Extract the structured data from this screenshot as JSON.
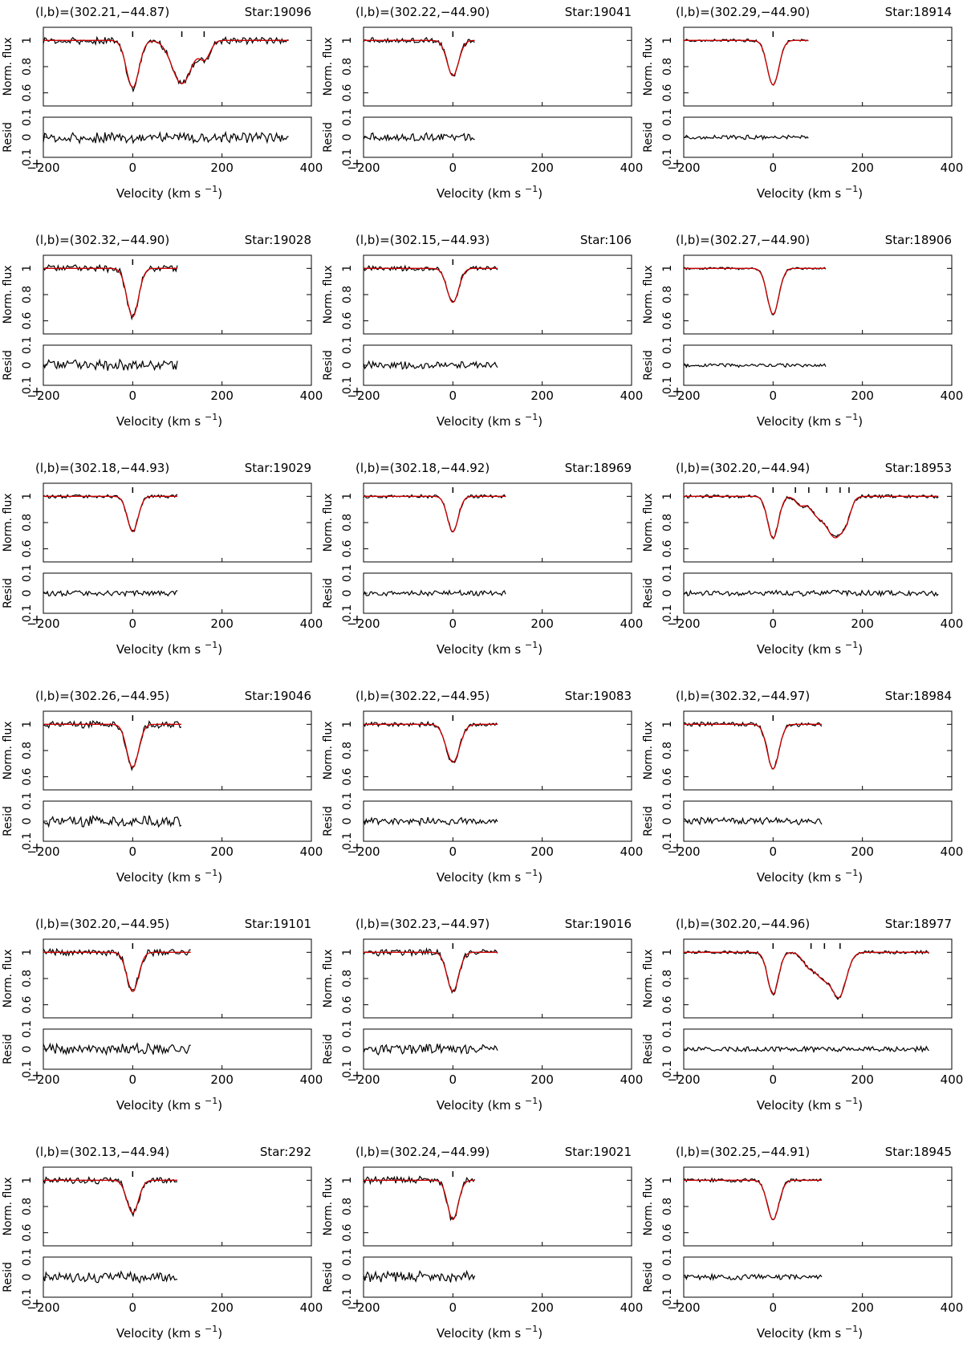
{
  "figure": {
    "colors": {
      "data": "#000000",
      "model": "#cc0000"
    },
    "panel_labels": {
      "coord_prefix": "(l,b)=",
      "star_prefix": "Star:",
      "y_main": "Norm. flux",
      "y_resid": "Resid",
      "x_label": "Velocity (km s",
      "x_label_exp": "−1",
      "x_label_close": ")"
    }
  },
  "chart_data": [
    {
      "type": "line",
      "coord": "(302.21,−44.87)",
      "star": "19096",
      "xlim": [
        -200,
        400
      ],
      "ylim_main": [
        0.5,
        1.1
      ],
      "yticks_main": [
        1,
        0.8,
        0.6
      ],
      "ylim_resid": [
        -0.1,
        0.1
      ],
      "yticks_resid": [
        "0.1",
        "0",
        "0.1"
      ],
      "xticks": [
        -200,
        0,
        200,
        400
      ],
      "xtick_labels": [
        "−200",
        "0",
        "200",
        "400"
      ],
      "vmax": 350,
      "markers": [
        0,
        110,
        160
      ],
      "components": [
        [
          0,
          0.36,
          14
        ],
        [
          110,
          0.33,
          22
        ],
        [
          162,
          0.13,
          12
        ]
      ],
      "resid_amp": 0.03
    },
    {
      "type": "line",
      "coord": "(302.22,−44.90)",
      "star": "19041",
      "xlim": [
        -200,
        400
      ],
      "ylim_main": [
        0.5,
        1.1
      ],
      "yticks_main": [
        1,
        0.8,
        0.6
      ],
      "ylim_resid": [
        -0.1,
        0.1
      ],
      "yticks_resid": [
        "0.1",
        "0",
        "0.1"
      ],
      "xticks": [
        -200,
        0,
        200,
        400
      ],
      "xtick_labels": [
        "−200",
        "0",
        "200",
        "400"
      ],
      "vmax": 50,
      "markers": [
        0
      ],
      "components": [
        [
          0,
          0.27,
          13
        ]
      ],
      "resid_amp": 0.022
    },
    {
      "type": "line",
      "coord": "(302.29,−44.90)",
      "star": "18914",
      "xlim": [
        -200,
        400
      ],
      "ylim_main": [
        0.5,
        1.1
      ],
      "yticks_main": [
        1,
        0.8,
        0.6
      ],
      "ylim_resid": [
        -0.1,
        0.1
      ],
      "yticks_resid": [
        "0.1",
        "0",
        "0.1"
      ],
      "xticks": [
        -200,
        0,
        200,
        400
      ],
      "xtick_labels": [
        "−200",
        "0",
        "200",
        "400"
      ],
      "vmax": 80,
      "markers": [
        0
      ],
      "components": [
        [
          0,
          0.34,
          13
        ]
      ],
      "resid_amp": 0.012
    },
    {
      "type": "line",
      "coord": "(302.32,−44.90)",
      "star": "19028",
      "xlim": [
        -200,
        400
      ],
      "ylim_main": [
        0.5,
        1.1
      ],
      "yticks_main": [
        1,
        0.8,
        0.6
      ],
      "ylim_resid": [
        -0.1,
        0.1
      ],
      "yticks_resid": [
        "0.1",
        "0",
        "0.1"
      ],
      "xticks": [
        -200,
        0,
        200,
        400
      ],
      "xtick_labels": [
        "−200",
        "0",
        "200",
        "400"
      ],
      "vmax": 100,
      "markers": [
        0
      ],
      "components": [
        [
          0,
          0.37,
          13
        ]
      ],
      "resid_amp": 0.03
    },
    {
      "type": "line",
      "coord": "(302.15,−44.93)",
      "star": "106",
      "xlim": [
        -200,
        400
      ],
      "ylim_main": [
        0.5,
        1.1
      ],
      "yticks_main": [
        1,
        0.8,
        0.6
      ],
      "ylim_resid": [
        -0.1,
        0.1
      ],
      "yticks_resid": [
        "0.1",
        "0",
        "0.1"
      ],
      "xticks": [
        -200,
        0,
        200,
        400
      ],
      "xtick_labels": [
        "−200",
        "0",
        "200",
        "400"
      ],
      "vmax": 100,
      "markers": [
        0
      ],
      "components": [
        [
          0,
          0.26,
          13
        ]
      ],
      "resid_amp": 0.02
    },
    {
      "type": "line",
      "coord": "(302.27,−44.90)",
      "star": "18906",
      "xlim": [
        -200,
        400
      ],
      "ylim_main": [
        0.5,
        1.1
      ],
      "yticks_main": [
        1,
        0.8,
        0.6
      ],
      "ylim_resid": [
        -0.1,
        0.1
      ],
      "yticks_resid": [
        "0.1",
        "0",
        "0.1"
      ],
      "xticks": [
        -200,
        0,
        200,
        400
      ],
      "xtick_labels": [
        "−200",
        "0",
        "200",
        "400"
      ],
      "vmax": 120,
      "markers": [],
      "components": [
        [
          0,
          0.35,
          13
        ]
      ],
      "resid_amp": 0.01
    },
    {
      "type": "line",
      "coord": "(302.18,−44.93)",
      "star": "19029",
      "xlim": [
        -200,
        400
      ],
      "ylim_main": [
        0.5,
        1.1
      ],
      "yticks_main": [
        1,
        0.8,
        0.6
      ],
      "ylim_resid": [
        -0.1,
        0.1
      ],
      "yticks_resid": [
        "0.1",
        "0",
        "0.1"
      ],
      "xticks": [
        -200,
        0,
        200,
        400
      ],
      "xtick_labels": [
        "−200",
        "0",
        "200",
        "400"
      ],
      "vmax": 100,
      "markers": [
        0
      ],
      "components": [
        [
          0,
          0.27,
          12
        ]
      ],
      "resid_amp": 0.015
    },
    {
      "type": "line",
      "coord": "(302.18,−44.92)",
      "star": "18969",
      "xlim": [
        -200,
        400
      ],
      "ylim_main": [
        0.5,
        1.1
      ],
      "yticks_main": [
        1,
        0.8,
        0.6
      ],
      "ylim_resid": [
        -0.1,
        0.1
      ],
      "yticks_resid": [
        "0.1",
        "0",
        "0.1"
      ],
      "xticks": [
        -200,
        0,
        200,
        400
      ],
      "xtick_labels": [
        "−200",
        "0",
        "200",
        "400"
      ],
      "vmax": 120,
      "markers": [
        0
      ],
      "components": [
        [
          0,
          0.27,
          12
        ]
      ],
      "resid_amp": 0.015
    },
    {
      "type": "line",
      "coord": "(302.20,−44.94)",
      "star": "18953",
      "xlim": [
        -200,
        400
      ],
      "ylim_main": [
        0.5,
        1.1
      ],
      "yticks_main": [
        1,
        0.8,
        0.6
      ],
      "ylim_resid": [
        -0.1,
        0.1
      ],
      "yticks_resid": [
        "0.1",
        "0",
        "0.1"
      ],
      "xticks": [
        -200,
        0,
        200,
        400
      ],
      "xtick_labels": [
        "−200",
        "0",
        "200",
        "400"
      ],
      "vmax": 370,
      "markers": [
        0,
        50,
        80,
        120,
        150,
        170
      ],
      "components": [
        [
          0,
          0.32,
          12
        ],
        [
          60,
          0.06,
          10
        ],
        [
          100,
          0.14,
          18
        ],
        [
          140,
          0.3,
          18
        ],
        [
          165,
          0.1,
          10
        ]
      ],
      "resid_amp": 0.015
    },
    {
      "type": "line",
      "coord": "(302.26,−44.95)",
      "star": "19046",
      "xlim": [
        -200,
        400
      ],
      "ylim_main": [
        0.5,
        1.1
      ],
      "yticks_main": [
        1,
        0.8,
        0.6
      ],
      "ylim_resid": [
        -0.1,
        0.1
      ],
      "yticks_resid": [
        "0.1",
        "0",
        "0.1"
      ],
      "xticks": [
        -200,
        0,
        200,
        400
      ],
      "xtick_labels": [
        "−200",
        "0",
        "200",
        "400"
      ],
      "vmax": 110,
      "markers": [
        0
      ],
      "components": [
        [
          0,
          0.33,
          13
        ]
      ],
      "resid_amp": 0.03
    },
    {
      "type": "line",
      "coord": "(302.22,−44.95)",
      "star": "19083",
      "xlim": [
        -200,
        400
      ],
      "ylim_main": [
        0.5,
        1.1
      ],
      "yticks_main": [
        1,
        0.8,
        0.6
      ],
      "ylim_resid": [
        -0.1,
        0.1
      ],
      "yticks_resid": [
        "0.1",
        "0",
        "0.1"
      ],
      "xticks": [
        -200,
        0,
        200,
        400
      ],
      "xtick_labels": [
        "−200",
        "0",
        "200",
        "400"
      ],
      "vmax": 100,
      "markers": [
        0
      ],
      "components": [
        [
          0,
          0.29,
          15
        ]
      ],
      "resid_amp": 0.02
    },
    {
      "type": "line",
      "coord": "(302.32,−44.97)",
      "star": "18984",
      "xlim": [
        -200,
        400
      ],
      "ylim_main": [
        0.5,
        1.1
      ],
      "yticks_main": [
        1,
        0.8,
        0.6
      ],
      "ylim_resid": [
        -0.1,
        0.1
      ],
      "yticks_resid": [
        "0.1",
        "0",
        "0.1"
      ],
      "xticks": [
        -200,
        0,
        200,
        400
      ],
      "xtick_labels": [
        "−200",
        "0",
        "200",
        "400"
      ],
      "vmax": 110,
      "markers": [
        0
      ],
      "components": [
        [
          0,
          0.34,
          13
        ]
      ],
      "resid_amp": 0.02
    },
    {
      "type": "line",
      "coord": "(302.20,−44.95)",
      "star": "19101",
      "xlim": [
        -200,
        400
      ],
      "ylim_main": [
        0.5,
        1.1
      ],
      "yticks_main": [
        1,
        0.8,
        0.6
      ],
      "ylim_resid": [
        -0.1,
        0.1
      ],
      "yticks_resid": [
        "0.1",
        "0",
        "0.1"
      ],
      "xticks": [
        -200,
        0,
        200,
        400
      ],
      "xtick_labels": [
        "−200",
        "0",
        "200",
        "400"
      ],
      "vmax": 130,
      "markers": [
        0
      ],
      "components": [
        [
          0,
          0.3,
          13
        ]
      ],
      "resid_amp": 0.03
    },
    {
      "type": "line",
      "coord": "(302.23,−44.97)",
      "star": "19016",
      "xlim": [
        -200,
        400
      ],
      "ylim_main": [
        0.5,
        1.1
      ],
      "yticks_main": [
        1,
        0.8,
        0.6
      ],
      "ylim_resid": [
        -0.1,
        0.1
      ],
      "yticks_resid": [
        "0.1",
        "0",
        "0.1"
      ],
      "xticks": [
        -200,
        0,
        200,
        400
      ],
      "xtick_labels": [
        "−200",
        "0",
        "200",
        "400"
      ],
      "vmax": 100,
      "markers": [
        0
      ],
      "components": [
        [
          0,
          0.3,
          13
        ]
      ],
      "resid_amp": 0.03
    },
    {
      "type": "line",
      "coord": "(302.20,−44.96)",
      "star": "18977",
      "xlim": [
        -200,
        400
      ],
      "ylim_main": [
        0.5,
        1.1
      ],
      "yticks_main": [
        1,
        0.8,
        0.6
      ],
      "ylim_resid": [
        -0.1,
        0.1
      ],
      "yticks_resid": [
        "0.1",
        "0",
        "0.1"
      ],
      "xticks": [
        -200,
        0,
        200,
        400
      ],
      "xtick_labels": [
        "−200",
        "0",
        "200",
        "400"
      ],
      "vmax": 350,
      "markers": [
        0,
        85,
        115,
        150
      ],
      "components": [
        [
          0,
          0.32,
          12
        ],
        [
          80,
          0.1,
          14
        ],
        [
          112,
          0.18,
          16
        ],
        [
          148,
          0.33,
          16
        ]
      ],
      "resid_amp": 0.015
    },
    {
      "type": "line",
      "coord": "(302.13,−44.94)",
      "star": "292",
      "xlim": [
        -200,
        400
      ],
      "ylim_main": [
        0.5,
        1.1
      ],
      "yticks_main": [
        1,
        0.8,
        0.6
      ],
      "ylim_resid": [
        -0.1,
        0.1
      ],
      "yticks_resid": [
        "0.1",
        "0",
        "0.1"
      ],
      "xticks": [
        -200,
        0,
        200,
        400
      ],
      "xtick_labels": [
        "−200",
        "0",
        "200",
        "400"
      ],
      "vmax": 100,
      "markers": [
        0
      ],
      "components": [
        [
          0,
          0.25,
          13
        ]
      ],
      "resid_amp": 0.03
    },
    {
      "type": "line",
      "coord": "(302.24,−44.99)",
      "star": "19021",
      "xlim": [
        -200,
        400
      ],
      "ylim_main": [
        0.5,
        1.1
      ],
      "yticks_main": [
        1,
        0.8,
        0.6
      ],
      "ylim_resid": [
        -0.1,
        0.1
      ],
      "yticks_resid": [
        "0.1",
        "0",
        "0.1"
      ],
      "xticks": [
        -200,
        0,
        200,
        400
      ],
      "xtick_labels": [
        "−200",
        "0",
        "200",
        "400"
      ],
      "vmax": 50,
      "markers": [
        0
      ],
      "components": [
        [
          0,
          0.3,
          12
        ]
      ],
      "resid_amp": 0.03
    },
    {
      "type": "line",
      "coord": "(302.25,−44.91)",
      "star": "18945",
      "xlim": [
        -200,
        400
      ],
      "ylim_main": [
        0.5,
        1.1
      ],
      "yticks_main": [
        1,
        0.8,
        0.6
      ],
      "ylim_resid": [
        -0.1,
        0.1
      ],
      "yticks_resid": [
        "0.1",
        "0",
        "0.1"
      ],
      "xticks": [
        -200,
        0,
        200,
        400
      ],
      "xtick_labels": [
        "−200",
        "0",
        "200",
        "400"
      ],
      "vmax": 110,
      "markers": [],
      "components": [
        [
          0,
          0.3,
          13
        ]
      ],
      "resid_amp": 0.015
    }
  ]
}
